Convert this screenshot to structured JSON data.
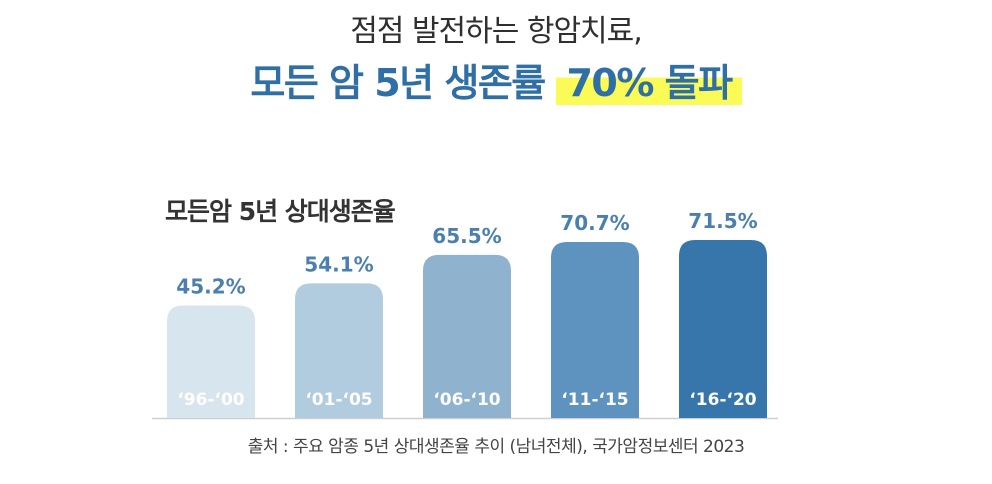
{
  "headline": {
    "line1": "점점 발전하는 항암치료,",
    "line2_main": "모든 암 5년 생존률 ",
    "line2_highlight": "70% 돌파"
  },
  "source_text": "출처 : 주요 암종 5년 상대생존율 추이 (남녀전체), 국가암정보센터 2023",
  "chart_data": {
    "type": "bar",
    "title": "모든암 5년 상대생존율",
    "categories": [
      "‘96-‘00",
      "‘01-‘05",
      "‘06-‘10",
      "‘11-‘15",
      "‘16-‘20"
    ],
    "values": [
      45.2,
      54.1,
      65.5,
      70.7,
      71.5
    ],
    "value_labels": [
      "45.2%",
      "54.1%",
      "65.5%",
      "70.7%",
      "71.5%"
    ],
    "colors": [
      "#d7e5ef",
      "#b1cbdf",
      "#8fb2cf",
      "#5e92bf",
      "#3676aa"
    ],
    "label_color": "#4a7fb0",
    "legend": "none",
    "grid": false
  }
}
